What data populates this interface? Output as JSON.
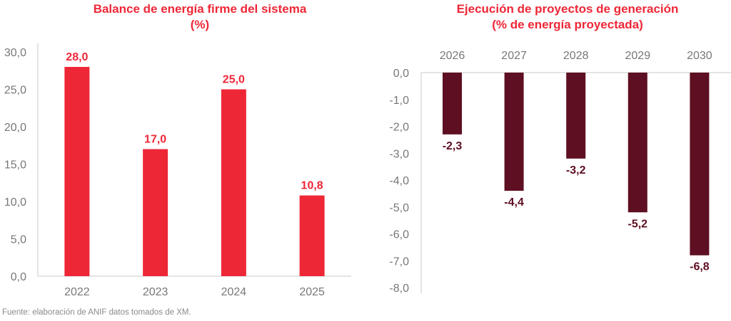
{
  "chart_data": [
    {
      "type": "bar",
      "title": "Balance de energía firme del sistema",
      "subtitle": "(%)",
      "categories": [
        "2022",
        "2023",
        "2024",
        "2025"
      ],
      "values": [
        28.0,
        17.0,
        25.0,
        10.8
      ],
      "value_labels": [
        "28,0",
        "17,0",
        "25,0",
        "10,8"
      ],
      "xlabel": "",
      "ylabel": "",
      "ylim": [
        0,
        30
      ],
      "yticks": [
        0,
        5,
        10,
        15,
        20,
        25,
        30
      ],
      "ytick_labels": [
        "0,0",
        "5,0",
        "10,0",
        "15,0",
        "20,0",
        "25,0",
        "30,0"
      ],
      "color": "#ee2737",
      "grid": false,
      "legend": "none"
    },
    {
      "type": "bar",
      "title": "Ejecución de proyectos de generación",
      "subtitle": "(% de energía proyectada)",
      "categories": [
        "2026",
        "2027",
        "2028",
        "2029",
        "2030"
      ],
      "values": [
        -2.3,
        -4.4,
        -3.2,
        -5.2,
        -6.8
      ],
      "value_labels": [
        "-2,3",
        "-4,4",
        "-3,2",
        "-5,2",
        "-6,8"
      ],
      "xlabel": "",
      "ylabel": "",
      "ylim": [
        -8,
        0
      ],
      "yticks": [
        0,
        -1,
        -2,
        -3,
        -4,
        -5,
        -6,
        -7,
        -8
      ],
      "ytick_labels": [
        "0,0",
        "-1,0",
        "-2,0",
        "-3,0",
        "-4,0",
        "-5,0",
        "-6,0",
        "-7,0",
        "-8,0"
      ],
      "x_axis_position": "top",
      "color": "#5e0f22",
      "grid": false,
      "legend": "none"
    }
  ],
  "source": "Fuente: elaboración de ANIF datos tomados de XM."
}
